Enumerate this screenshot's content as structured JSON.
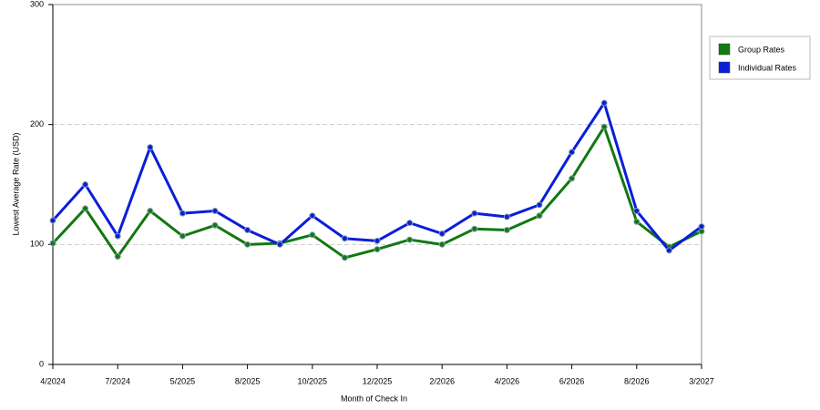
{
  "chart_data": {
    "type": "line",
    "x_label": "Month of Check In",
    "y_label": "Lowest Average Rate (USD)",
    "categories": [
      "4/2024",
      null,
      "7/2024",
      null,
      "5/2025",
      null,
      "8/2025",
      null,
      "10/2025",
      null,
      "12/2025",
      null,
      "2/2026",
      null,
      "4/2026",
      null,
      "6/2026",
      null,
      "8/2026",
      null,
      "3/2027"
    ],
    "series": [
      {
        "name": "Group Rates",
        "color": "#127812",
        "values": [
          101,
          130,
          90,
          128,
          107,
          116,
          100,
          101,
          108,
          89,
          96,
          104,
          100,
          113,
          112,
          124,
          155,
          198,
          119,
          98,
          111
        ]
      },
      {
        "name": "Individual Rates",
        "color": "#0b1ed8",
        "values": [
          120,
          150,
          107,
          181,
          126,
          128,
          112,
          100,
          124,
          105,
          103,
          118,
          109,
          126,
          123,
          133,
          177,
          218,
          128,
          95,
          115
        ]
      }
    ],
    "ylim": [
      0,
      300
    ],
    "yticks": [
      0,
      100,
      200,
      300
    ],
    "grid": true,
    "legend": "right"
  }
}
